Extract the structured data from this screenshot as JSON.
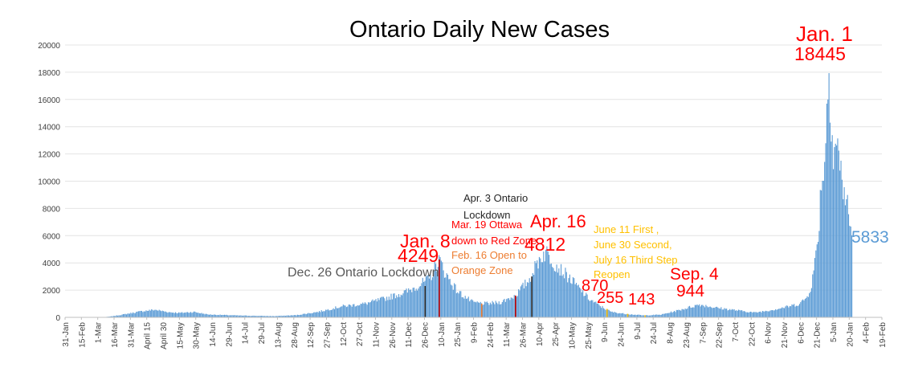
{
  "chart_data": {
    "type": "bar",
    "title": "Ontario Daily New Cases",
    "ylim": [
      0,
      20000
    ],
    "yticks": [
      0,
      2000,
      4000,
      6000,
      8000,
      10000,
      12000,
      14000,
      16000,
      18000,
      20000
    ],
    "x_start": "2020-01-31",
    "x_end": "2022-02-19",
    "xtick_labels": [
      "31-Jan",
      "15-Feb",
      "1-Mar",
      "16-Mar",
      "31-Mar",
      "April 15",
      "April 30",
      "15-May",
      "30-May",
      "14-Jun",
      "29-Jun",
      "14-Jul",
      "29-Jul",
      "13-Aug",
      "28-Aug",
      "12-Sep",
      "27-Sep",
      "12-Oct",
      "27-Oct",
      "11-Nov",
      "26-Nov",
      "11-Dec",
      "26-Dec",
      "10-Jan",
      "25-Jan",
      "9-Feb",
      "24-Feb",
      "11-Mar",
      "26-Mar",
      "10-Apr",
      "25-Apr",
      "10-May",
      "25-May",
      "9-Jun",
      "24-Jun",
      "9-Jul",
      "24-Jul",
      "8-Aug",
      "23-Aug",
      "7-Sep",
      "22-Sep",
      "7-Oct",
      "22-Oct",
      "6-Nov",
      "21-Nov",
      "6-Dec",
      "21-Dec",
      "5-Jan",
      "20-Jan",
      "4-Feb",
      "19-Feb"
    ],
    "bar_color": "#5b9bd5",
    "series_keypoints": [
      {
        "date": "2020-01-31",
        "value": 0
      },
      {
        "date": "2020-03-05",
        "value": 0
      },
      {
        "date": "2020-03-12",
        "value": 60
      },
      {
        "date": "2020-03-22",
        "value": 180
      },
      {
        "date": "2020-04-05",
        "value": 380
      },
      {
        "date": "2020-04-12",
        "value": 470
      },
      {
        "date": "2020-04-22",
        "value": 560
      },
      {
        "date": "2020-05-05",
        "value": 380
      },
      {
        "date": "2020-05-15",
        "value": 330
      },
      {
        "date": "2020-05-28",
        "value": 400
      },
      {
        "date": "2020-06-10",
        "value": 210
      },
      {
        "date": "2020-07-10",
        "value": 130
      },
      {
        "date": "2020-08-10",
        "value": 90
      },
      {
        "date": "2020-08-30",
        "value": 160
      },
      {
        "date": "2020-09-20",
        "value": 420
      },
      {
        "date": "2020-10-10",
        "value": 800
      },
      {
        "date": "2020-11-01",
        "value": 1000
      },
      {
        "date": "2020-11-20",
        "value": 1400
      },
      {
        "date": "2020-12-10",
        "value": 1900
      },
      {
        "date": "2020-12-30",
        "value": 2800
      },
      {
        "date": "2021-01-08",
        "value": 4249
      },
      {
        "date": "2021-01-14",
        "value": 3200
      },
      {
        "date": "2021-01-25",
        "value": 1900
      },
      {
        "date": "2021-02-08",
        "value": 1100
      },
      {
        "date": "2021-02-20",
        "value": 1000
      },
      {
        "date": "2021-03-05",
        "value": 1100
      },
      {
        "date": "2021-03-19",
        "value": 1600
      },
      {
        "date": "2021-04-01",
        "value": 2800
      },
      {
        "date": "2021-04-10",
        "value": 4300
      },
      {
        "date": "2021-04-16",
        "value": 4812
      },
      {
        "date": "2021-04-26",
        "value": 3800
      },
      {
        "date": "2021-05-10",
        "value": 2700
      },
      {
        "date": "2021-05-25",
        "value": 1400
      },
      {
        "date": "2021-06-04",
        "value": 870
      },
      {
        "date": "2021-06-15",
        "value": 400
      },
      {
        "date": "2021-06-28",
        "value": 255
      },
      {
        "date": "2021-07-15",
        "value": 143
      },
      {
        "date": "2021-07-31",
        "value": 200
      },
      {
        "date": "2021-08-15",
        "value": 500
      },
      {
        "date": "2021-09-04",
        "value": 944
      },
      {
        "date": "2021-09-20",
        "value": 700
      },
      {
        "date": "2021-10-10",
        "value": 500
      },
      {
        "date": "2021-10-25",
        "value": 350
      },
      {
        "date": "2021-11-10",
        "value": 550
      },
      {
        "date": "2021-11-25",
        "value": 800
      },
      {
        "date": "2021-12-05",
        "value": 1000
      },
      {
        "date": "2021-12-12",
        "value": 1500
      },
      {
        "date": "2021-12-16",
        "value": 2400
      },
      {
        "date": "2021-12-19",
        "value": 4000
      },
      {
        "date": "2021-12-22",
        "value": 6000
      },
      {
        "date": "2021-12-25",
        "value": 10000
      },
      {
        "date": "2021-12-28",
        "value": 11500
      },
      {
        "date": "2021-12-31",
        "value": 16700
      },
      {
        "date": "2022-01-01",
        "value": 18445
      },
      {
        "date": "2022-01-02",
        "value": 16700
      },
      {
        "date": "2022-01-05",
        "value": 12000
      },
      {
        "date": "2022-01-08",
        "value": 13000
      },
      {
        "date": "2022-01-12",
        "value": 10500
      },
      {
        "date": "2022-01-17",
        "value": 8500
      },
      {
        "date": "2022-01-20",
        "value": 7000
      },
      {
        "date": "2022-01-22",
        "value": 5833
      },
      {
        "date": "2022-01-23",
        "value": 0
      },
      {
        "date": "2022-02-19",
        "value": 0
      }
    ],
    "markers": [
      {
        "date": "2020-12-26",
        "value": 2300,
        "color": "#262626"
      },
      {
        "date": "2021-01-08",
        "value": 4249,
        "color": "#c00000"
      },
      {
        "date": "2021-02-16",
        "value": 1000,
        "color": "#ed7d31"
      },
      {
        "date": "2021-03-19",
        "value": 1600,
        "color": "#c00000"
      },
      {
        "date": "2021-04-03",
        "value": 3000,
        "color": "#262626"
      },
      {
        "date": "2021-06-11",
        "value": 620,
        "color": "#ffc000"
      },
      {
        "date": "2021-06-30",
        "value": 260,
        "color": "#ffc000"
      },
      {
        "date": "2021-07-16",
        "value": 150,
        "color": "#ffc000"
      }
    ],
    "annotations": {
      "jan1_date": "Jan. 1",
      "jan1_value": "18445",
      "latest_value": "5833",
      "jan8_date": "Jan. 8",
      "jan8_value": "4249",
      "dec26_lockdown": "Dec. 26 Ontario Lockdown",
      "apr3_line1": "Apr. 3 Ontario",
      "apr3_line2": "Lockdown",
      "mar19_line1": "Mar. 19 Ottawa",
      "mar19_line2": "down to Red Zone",
      "feb16_line1": "Feb. 16 Open to",
      "feb16_line2": "Orange Zone",
      "apr16_date": "Apr. 16",
      "apr16_value": "4812",
      "june_line1": "June 11 First ,",
      "june_line2": "June 30 Second,",
      "june_line3": "July 16 Third Step",
      "june_line4": "Reopen",
      "sep4_date": "Sep. 4",
      "sep4_value": "944",
      "val_870": "870",
      "val_255": "255",
      "val_143": "143"
    }
  }
}
